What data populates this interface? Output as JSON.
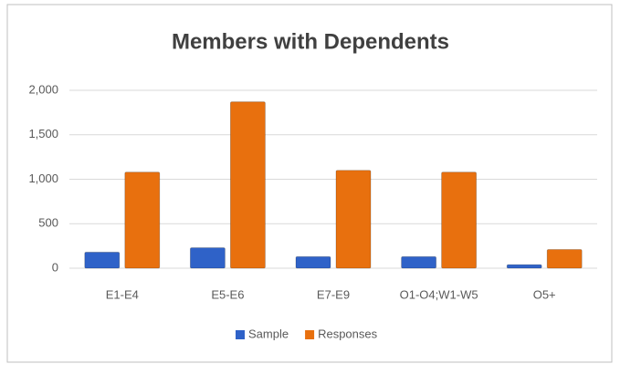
{
  "chart_data": {
    "type": "bar",
    "title": "Members with Dependents",
    "categories": [
      "E1-E4",
      "E5-E6",
      "E7-E9",
      "O1-O4;W1-W5",
      "O5+"
    ],
    "series": [
      {
        "name": "Sample",
        "color": "#2f62c8",
        "values": [
          180,
          230,
          130,
          130,
          40
        ]
      },
      {
        "name": "Responses",
        "color": "#e8700e",
        "values": [
          1080,
          1870,
          1100,
          1080,
          210
        ]
      }
    ],
    "ylim": [
      0,
      2000
    ],
    "yticks": [
      0,
      500,
      {
        "value": 1000,
        "label": "1,000"
      },
      {
        "value": 1500,
        "label": "1,500"
      },
      {
        "value": 2000,
        "label": "2,000"
      }
    ],
    "grid": true,
    "legend": "bottom"
  }
}
